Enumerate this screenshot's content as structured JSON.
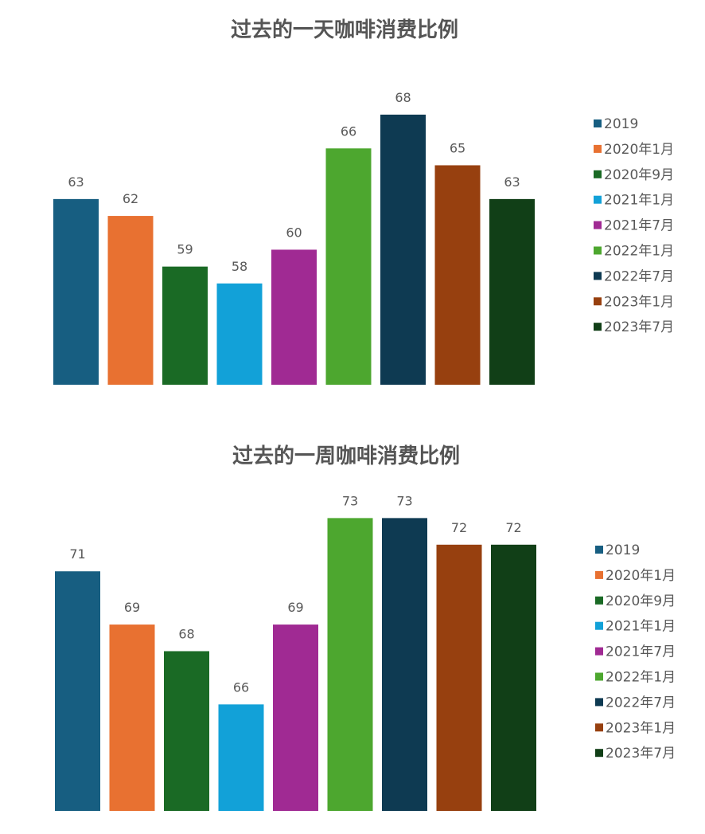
{
  "chart_data": [
    {
      "type": "bar",
      "title": "过去的一天咖啡消费比例",
      "categories": [
        "2019",
        "2020年1月",
        "2020年9月",
        "2021年1月",
        "2021年7月",
        "2022年1月",
        "2022年7月",
        "2023年1月",
        "2023年7月"
      ],
      "values": [
        63,
        62,
        59,
        58,
        60,
        66,
        68,
        65,
        63
      ],
      "colors": [
        "#175e81",
        "#e87131",
        "#1a6a25",
        "#12a1d8",
        "#a02a93",
        "#4da72f",
        "#0e3a52",
        "#97400f",
        "#113f17"
      ],
      "ylim": [
        52,
        69.6
      ],
      "grid": false,
      "legend": "right"
    },
    {
      "type": "bar",
      "title": "过去的一周咖啡消费比例",
      "categories": [
        "2019",
        "2020年1月",
        "2020年9月",
        "2021年1月",
        "2021年7月",
        "2022年1月",
        "2022年7月",
        "2023年1月",
        "2023年7月"
      ],
      "values": [
        71,
        69,
        68,
        66,
        69,
        73,
        73,
        72,
        72
      ],
      "colors": [
        "#175e81",
        "#e87131",
        "#1a6a25",
        "#12a1d8",
        "#a02a93",
        "#4da72f",
        "#0e3a52",
        "#97400f",
        "#113f17"
      ],
      "ylim": [
        62,
        73.55
      ],
      "grid": false,
      "legend": "right"
    }
  ]
}
